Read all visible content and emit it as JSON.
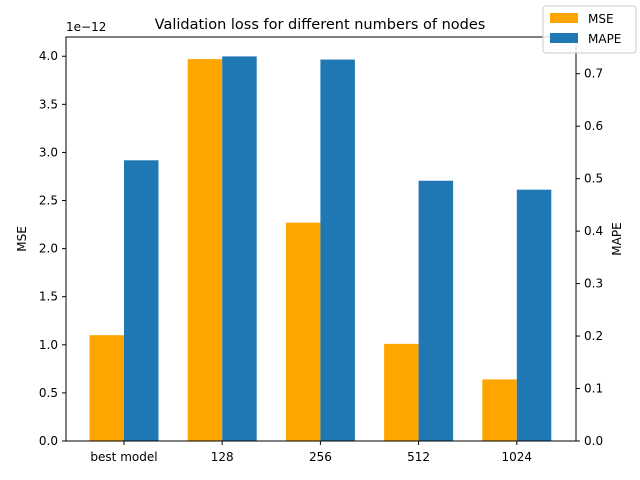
{
  "chart_data": {
    "type": "bar",
    "title": "Validation loss for different numbers of nodes",
    "categories": [
      "best model",
      "128",
      "256",
      "512",
      "1024"
    ],
    "series": [
      {
        "name": "MSE",
        "axis": "left",
        "color": "#ffa500",
        "values": [
          1.1e-12,
          3.97e-12,
          2.27e-12,
          1.01e-12,
          6.4e-13
        ]
      },
      {
        "name": "MAPE",
        "axis": "right",
        "color": "#1f77b4",
        "values": [
          0.535,
          0.733,
          0.727,
          0.496,
          0.479
        ]
      }
    ],
    "ylabel_left": "MSE",
    "ylabel_right": "MAPE",
    "ylim_left": [
      0,
      4.2e-12
    ],
    "ylim_right": [
      0,
      0.77
    ],
    "left_ticks": [
      "0.0",
      "0.5",
      "1.0",
      "1.5",
      "2.0",
      "2.5",
      "3.0",
      "3.5",
      "4.0"
    ],
    "left_tick_values": [
      0,
      5e-13,
      1e-12,
      1.5e-12,
      2e-12,
      2.5e-12,
      3e-12,
      3.5e-12,
      4e-12
    ],
    "left_offset_label": "1e−12",
    "right_ticks": [
      "0.0",
      "0.1",
      "0.2",
      "0.3",
      "0.4",
      "0.5",
      "0.6",
      "0.7"
    ],
    "right_tick_values": [
      0,
      0.1,
      0.2,
      0.3,
      0.4,
      0.5,
      0.6,
      0.7
    ],
    "grid": false,
    "legend_position": "top-right"
  }
}
